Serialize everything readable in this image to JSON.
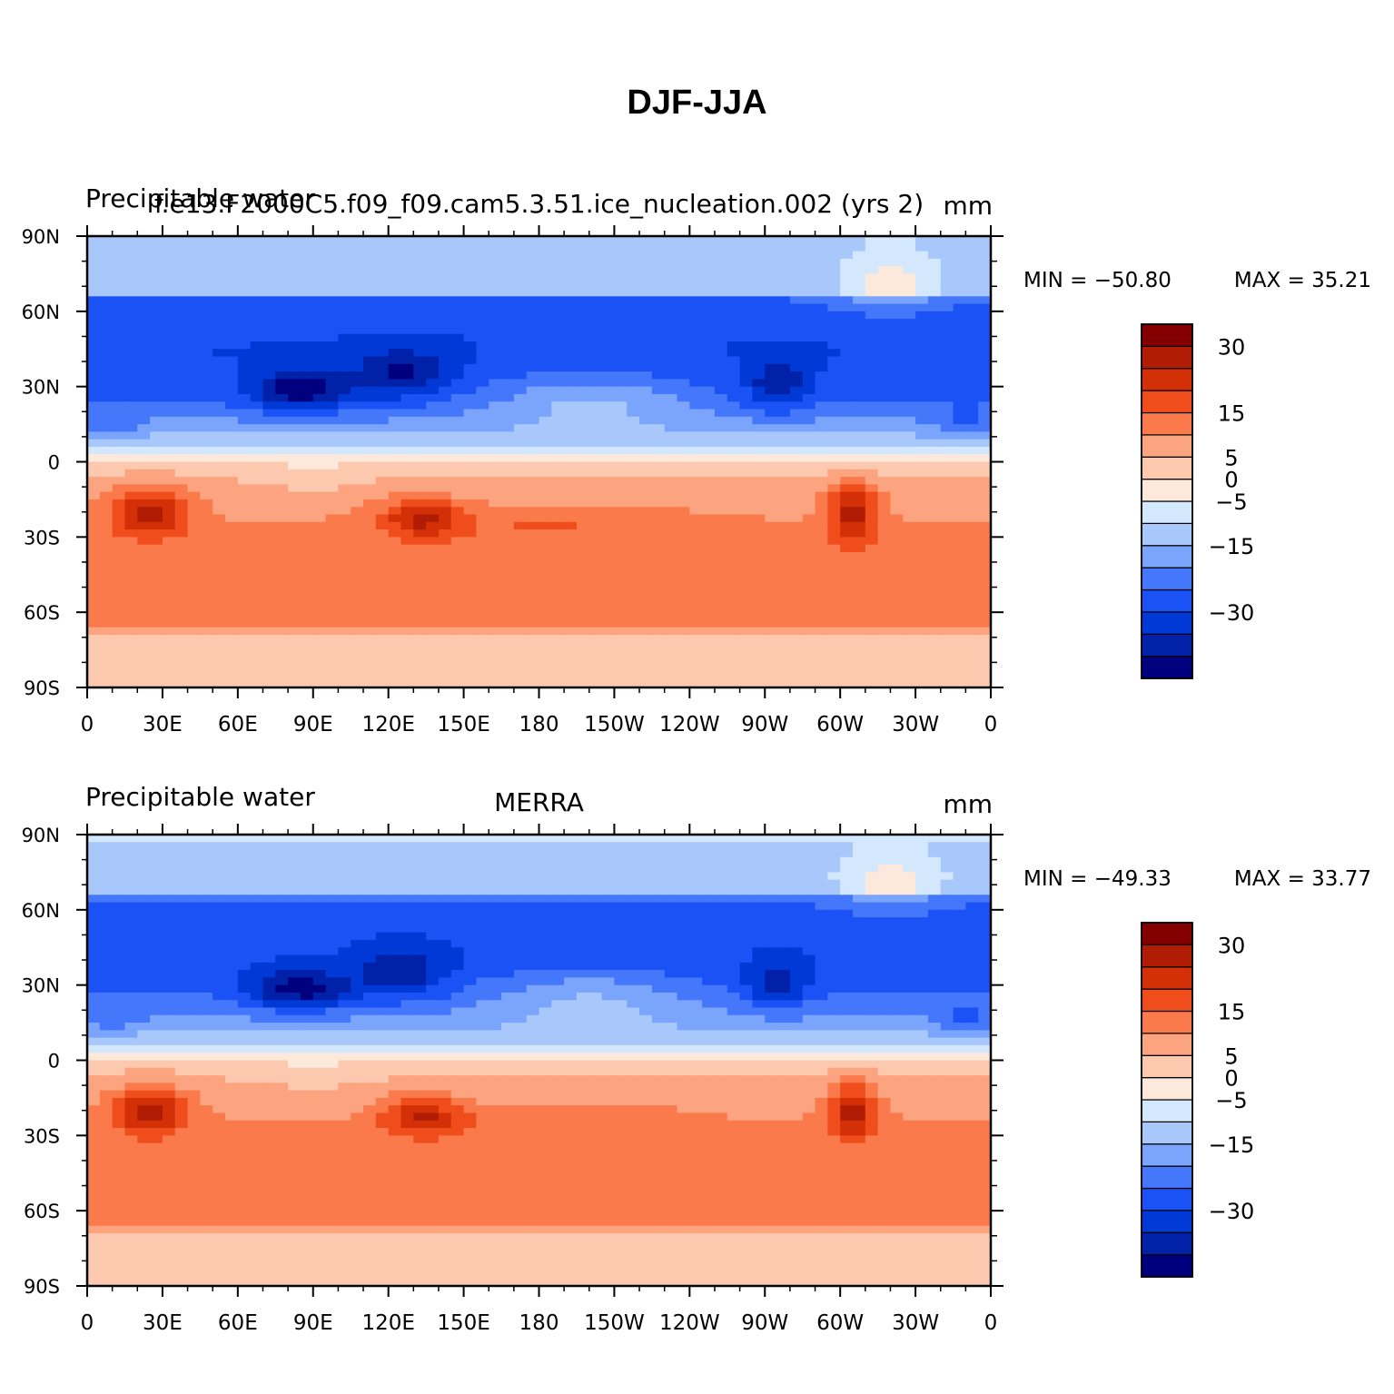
{
  "title": "DJF-JJA",
  "colors": {
    "scale": [
      "#00007f",
      "#0021a8",
      "#0039d6",
      "#1a52f5",
      "#4577fb",
      "#7ba5fc",
      "#a8c8fc",
      "#d3e7fd",
      "#fde9dc",
      "#fcc9ae",
      "#fca37f",
      "#fb7a4c",
      "#f04d1c",
      "#d43007",
      "#b01c04",
      "#840000"
    ]
  },
  "chart_data": [
    {
      "type": "heatmap",
      "variable": "Precipitable water",
      "case_title": "f.e13.F2000C5.f09_f09.cam5.3.51.ice_nucleation.002 (yrs 2)",
      "units": "mm",
      "min_label": "MIN = −50.80",
      "max_label": "MAX =   35.21",
      "min": -50.8,
      "max": 35.21,
      "lon_ticks": [
        "0",
        "30E",
        "60E",
        "90E",
        "120E",
        "150E",
        "180",
        "150W",
        "120W",
        "90W",
        "60W",
        "30W",
        "0"
      ],
      "lat_ticks": [
        "90N",
        "60N",
        "30N",
        "0",
        "30S",
        "60S",
        "90S"
      ],
      "colorbar_labels": [
        "30",
        "15",
        "5",
        "0",
        "−5",
        "−15",
        "−30"
      ],
      "colorbar_levels": [
        -40,
        -35,
        -30,
        -25,
        -20,
        -15,
        -10,
        -5,
        0,
        5,
        10,
        15,
        20,
        25,
        30,
        35
      ]
    },
    {
      "type": "heatmap",
      "variable": "Precipitable water",
      "case_title": "MERRA",
      "units": "mm",
      "min_label": "MIN = −49.33",
      "max_label": "MAX =   33.77",
      "min": -49.33,
      "max": 33.77,
      "lon_ticks": [
        "0",
        "30E",
        "60E",
        "90E",
        "120E",
        "150E",
        "180",
        "150W",
        "120W",
        "90W",
        "60W",
        "30W",
        "0"
      ],
      "lat_ticks": [
        "90N",
        "60N",
        "30N",
        "0",
        "30S",
        "60S",
        "90S"
      ],
      "colorbar_labels": [
        "30",
        "15",
        "5",
        "0",
        "−5",
        "−15",
        "−30"
      ],
      "colorbar_levels": [
        -40,
        -35,
        -30,
        -25,
        -20,
        -15,
        -10,
        -5,
        0,
        5,
        10,
        15,
        20,
        25,
        30,
        35
      ]
    }
  ]
}
